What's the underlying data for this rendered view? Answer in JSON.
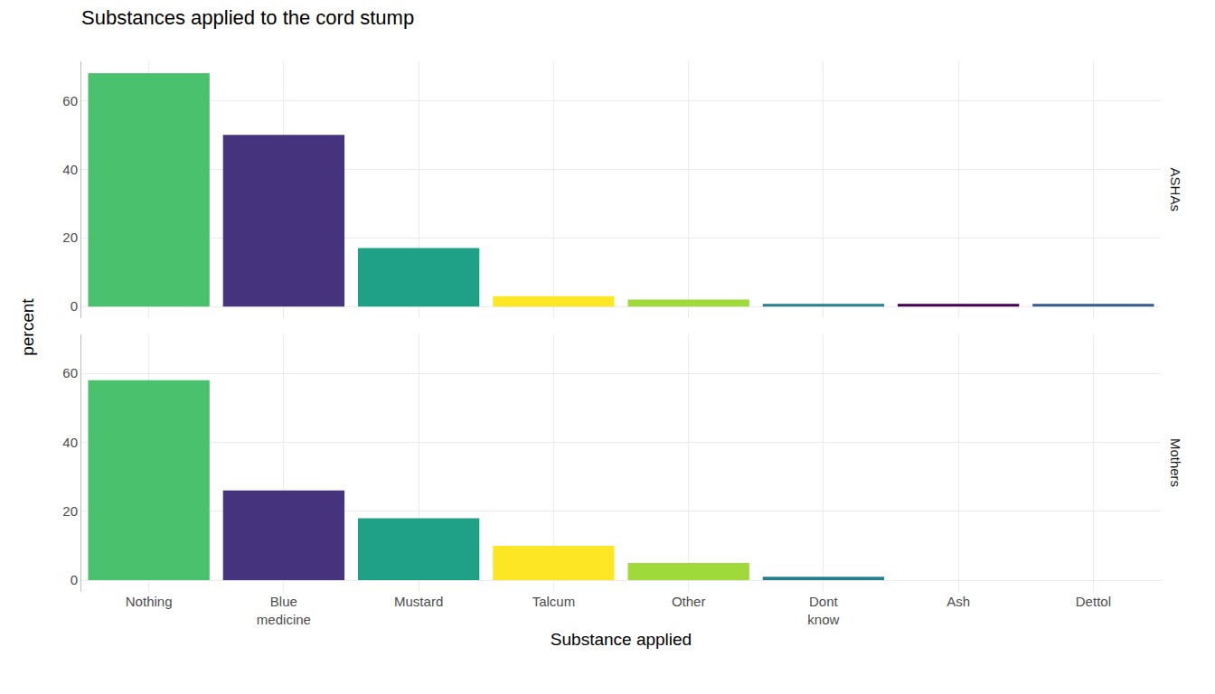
{
  "chart_data": {
    "type": "bar",
    "title": "Substances applied to the cord stump",
    "xlabel": "Substance applied",
    "ylabel": "percent",
    "categories": [
      "Nothing",
      "Blue\nmedicine",
      "Mustard",
      "Talcum",
      "Other",
      "Dont\nknow",
      "Ash",
      "Dettol"
    ],
    "colors": [
      "#4ac16d",
      "#46337e",
      "#1fa187",
      "#fde725",
      "#9fda3a",
      "#277f8e",
      "#440154",
      "#365c8d"
    ],
    "series": [
      {
        "name": "ASHAs",
        "values": [
          68,
          50,
          17,
          3,
          2,
          0.8,
          0.8,
          0.8
        ]
      },
      {
        "name": "Mothers",
        "values": [
          58,
          26,
          18,
          10,
          5,
          1,
          0,
          0
        ]
      }
    ],
    "ylim": [
      -3.4,
      71.4
    ],
    "yticks": [
      0,
      20,
      40,
      60
    ],
    "grid": true
  }
}
